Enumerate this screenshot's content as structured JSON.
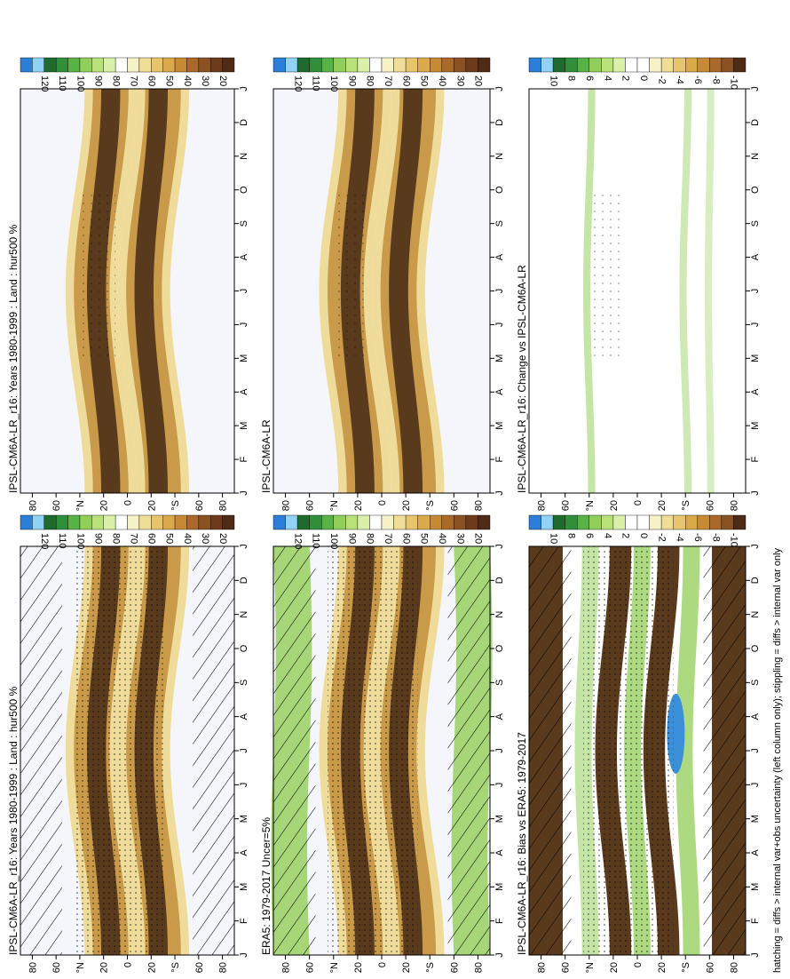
{
  "figure": {
    "footnote": "hatching = diffs > internal var+obs uncertainty (left column only); stippling = diffs > internal var only"
  },
  "chart_data": [
    {
      "type": "heatmap",
      "title": "IPSL-CM6A-LR_r16: Years 1980-1999 : Land : hur500 %",
      "variable": "hur500",
      "months": [
        "J",
        "F",
        "M",
        "A",
        "M",
        "J",
        "J",
        "A",
        "S",
        "O",
        "N",
        "D",
        "J"
      ],
      "lat_ticks": [
        "80",
        "60",
        "°N",
        "20",
        "0",
        "20",
        "°S",
        "60",
        "80"
      ],
      "colorbar": [
        "120",
        "110",
        "100",
        "90",
        "80",
        "70",
        "60",
        "50",
        "40",
        "30",
        "20"
      ],
      "overlay": "hatching+stippling"
    },
    {
      "type": "heatmap",
      "title": "ERA5: 1979-2017 Uncer=5%",
      "variable": "hur500",
      "months": [
        "J",
        "F",
        "M",
        "A",
        "M",
        "J",
        "J",
        "A",
        "S",
        "O",
        "N",
        "D",
        "J"
      ],
      "lat_ticks": [
        "80",
        "60",
        "°N",
        "20",
        "0",
        "20",
        "°S",
        "60",
        "80"
      ],
      "colorbar": [
        "120",
        "110",
        "100",
        "90",
        "80",
        "70",
        "60",
        "50",
        "40",
        "30",
        "20"
      ],
      "overlay": "hatching+stippling"
    },
    {
      "type": "heatmap",
      "title": "IPSL-CM6A-LR_r16: Bias vs ERA5: 1979-2017",
      "variable": "hur500 bias",
      "months": [
        "J",
        "F",
        "M",
        "A",
        "M",
        "J",
        "J",
        "A",
        "S",
        "O",
        "N",
        "D",
        "J"
      ],
      "lat_ticks": [
        "80",
        "60",
        "°N",
        "20",
        "0",
        "20",
        "°S",
        "60",
        "80"
      ],
      "colorbar": [
        "10",
        "8",
        "6",
        "4",
        "2",
        "0",
        "-2",
        "-4",
        "-6",
        "-8",
        "-10"
      ],
      "overlay": "hatching+stippling"
    },
    {
      "type": "heatmap",
      "title": "IPSL-CM6A-LR_r16: Years 1980-1999 : Land : hur500 %",
      "variable": "hur500",
      "months": [
        "J",
        "F",
        "M",
        "A",
        "M",
        "J",
        "J",
        "A",
        "S",
        "O",
        "N",
        "D",
        "J"
      ],
      "lat_ticks": [
        "80",
        "60",
        "°N",
        "20",
        "0",
        "20",
        "°S",
        "60",
        "80"
      ],
      "colorbar": [
        "120",
        "110",
        "100",
        "90",
        "80",
        "70",
        "60",
        "50",
        "40",
        "30",
        "20"
      ],
      "overlay": "stippling"
    },
    {
      "type": "heatmap",
      "title": "IPSL-CM6A-LR",
      "variable": "hur500",
      "months": [
        "J",
        "F",
        "M",
        "A",
        "M",
        "J",
        "J",
        "A",
        "S",
        "O",
        "N",
        "D",
        "J"
      ],
      "lat_ticks": [
        "80",
        "60",
        "°N",
        "20",
        "0",
        "20",
        "°S",
        "60",
        "80"
      ],
      "colorbar": [
        "120",
        "110",
        "100",
        "90",
        "80",
        "70",
        "60",
        "50",
        "40",
        "30",
        "20"
      ],
      "overlay": "stippling"
    },
    {
      "type": "heatmap",
      "title": "IPSL-CM6A-LR_r16: Change vs IPSL-CM6A-LR",
      "variable": "hur500 change",
      "months": [
        "J",
        "F",
        "M",
        "A",
        "M",
        "J",
        "J",
        "A",
        "S",
        "O",
        "N",
        "D",
        "J"
      ],
      "lat_ticks": [
        "80",
        "60",
        "°N",
        "20",
        "0",
        "20",
        "°S",
        "60",
        "80"
      ],
      "colorbar": [
        "10",
        "8",
        "6",
        "4",
        "2",
        "0",
        "-2",
        "-4",
        "-6",
        "-8",
        "-10"
      ],
      "overlay": "stippling"
    }
  ],
  "palette": {
    "abs": [
      "#2c7fd6",
      "#8fd3f4",
      "#1f6b2e",
      "#2f8f3a",
      "#58b347",
      "#8fcf5a",
      "#b9e27d",
      "#d9f0a8",
      "#ffffff",
      "#f7f1c8",
      "#f0dd96",
      "#e6c56c",
      "#d9a94a",
      "#c58a33",
      "#a8692a",
      "#8a5124",
      "#6b3b1c",
      "#4f2a14"
    ],
    "diff": [
      "#2c7fd6",
      "#8fd3f4",
      "#1f6b2e",
      "#2f8f3a",
      "#58b347",
      "#8fcf5a",
      "#b9e27d",
      "#d9f0a8",
      "#ffffff",
      "#ffffff",
      "#f7f1c8",
      "#f0dd96",
      "#e6c56c",
      "#d9a94a",
      "#c58a33",
      "#a8692a",
      "#8a5124",
      "#4f2a14"
    ],
    "dry_band": "#5a3a1c",
    "mid_band": "#c89a4a",
    "light_band": "#f0dc9a",
    "moist": "#9fd36a",
    "blue_zone": "#3b8fd8"
  }
}
